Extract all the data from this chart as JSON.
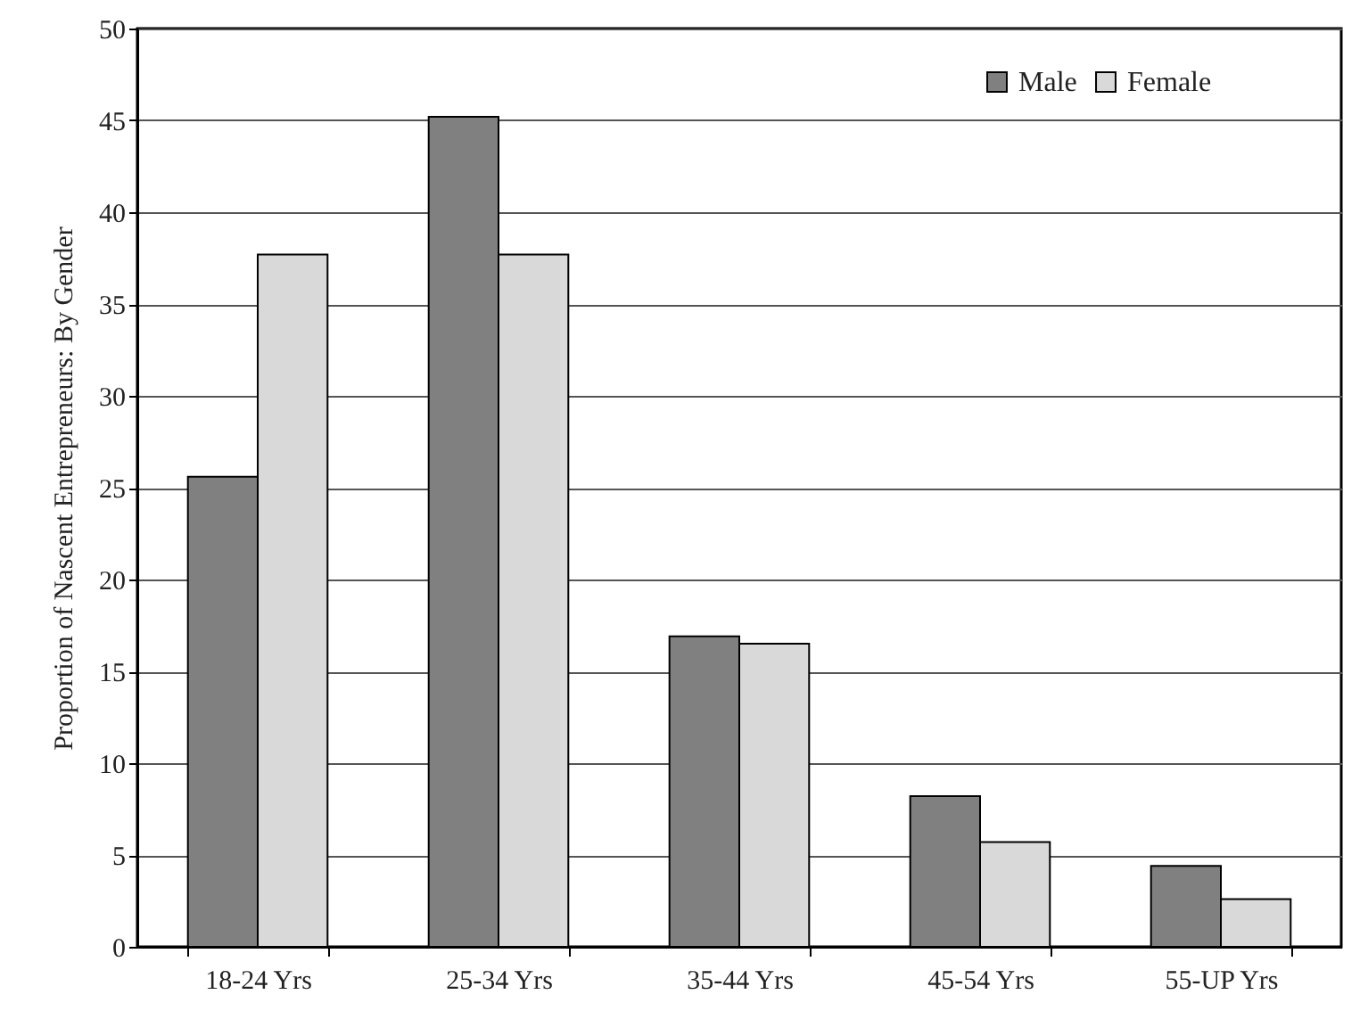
{
  "chart_data": {
    "type": "bar",
    "ylabel": "Proportion of Nascent Entrepreneurs: By Gender",
    "categories": [
      "18-24 Yrs",
      "25-34 Yrs",
      "35-44 Yrs",
      "45-54 Yrs",
      "55-UP Yrs"
    ],
    "series": [
      {
        "name": "Male",
        "color": "#808080",
        "values": [
          25.6,
          45.2,
          16.9,
          8.2,
          4.4
        ]
      },
      {
        "name": "Female",
        "color": "#d9d9d9",
        "values": [
          37.7,
          37.7,
          16.5,
          5.7,
          2.6
        ]
      }
    ],
    "ylim": [
      0,
      50
    ],
    "yticks": [
      0,
      5,
      10,
      15,
      20,
      25,
      30,
      35,
      40,
      45,
      50
    ],
    "grid": "y",
    "legend": "top right"
  }
}
